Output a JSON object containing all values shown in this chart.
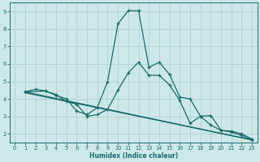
{
  "xlabel": "Humidex (Indice chaleur)",
  "background_color": "#cde8e8",
  "grid_color": "#aacccc",
  "line_color": "#1a6b6b",
  "xlim": [
    -0.5,
    23.5
  ],
  "ylim": [
    1.5,
    9.5
  ],
  "xticks": [
    0,
    1,
    2,
    3,
    4,
    5,
    6,
    7,
    8,
    9,
    10,
    11,
    12,
    13,
    14,
    15,
    16,
    17,
    18,
    19,
    20,
    21,
    22,
    23
  ],
  "yticks": [
    2,
    3,
    4,
    5,
    6,
    7,
    8,
    9
  ],
  "line1_x": [
    1,
    2,
    3,
    4,
    5,
    6,
    7,
    8,
    9,
    10,
    11,
    12,
    13,
    14,
    15,
    16,
    17,
    18,
    19,
    20,
    21,
    22,
    23
  ],
  "line1_y": [
    4.4,
    4.55,
    4.45,
    4.2,
    4.0,
    3.3,
    3.1,
    3.5,
    5.0,
    8.3,
    9.05,
    9.05,
    5.8,
    6.1,
    5.4,
    4.1,
    4.0,
    3.0,
    3.05,
    2.2,
    2.15,
    2.0,
    1.7
  ],
  "line2_x": [
    1,
    3,
    4,
    5,
    6,
    7,
    8,
    9,
    10,
    11,
    12,
    13,
    14,
    15,
    16,
    17,
    18,
    19,
    20,
    21,
    22,
    23
  ],
  "line2_y": [
    4.4,
    4.45,
    4.25,
    3.85,
    3.7,
    3.0,
    3.1,
    3.4,
    4.5,
    5.5,
    6.1,
    5.35,
    5.35,
    4.8,
    3.9,
    2.6,
    3.0,
    2.5,
    2.2,
    2.1,
    1.9,
    1.65
  ],
  "line3_x": [
    1,
    23
  ],
  "line3_y": [
    4.4,
    1.65
  ],
  "line4_x": [
    1,
    23
  ],
  "line4_y": [
    4.35,
    1.65
  ]
}
